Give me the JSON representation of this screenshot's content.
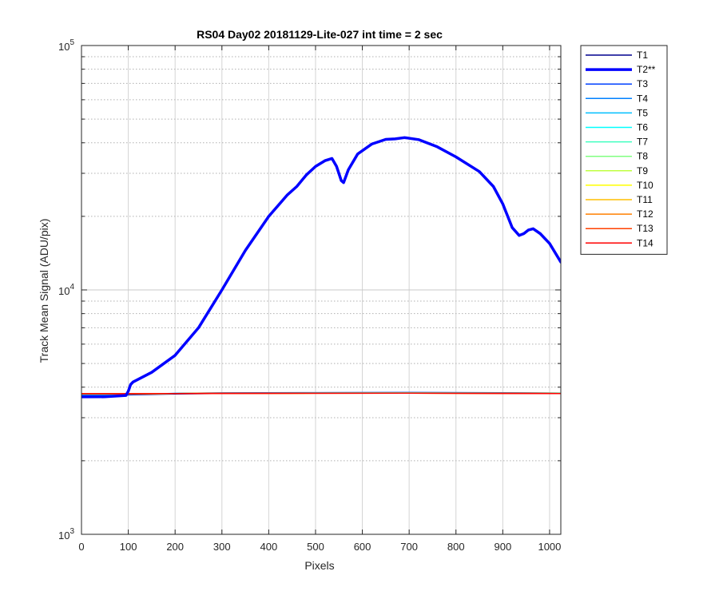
{
  "chart_data": {
    "type": "line",
    "title": "RS04 Day02 20181129-Lite-027 int time = 2 sec",
    "xlabel": "Pixels",
    "ylabel": "Track Mean Signal (ADU/pix)",
    "xlim": [
      0,
      1024
    ],
    "ylim": [
      1000,
      100000
    ],
    "yscale": "log",
    "grid": true,
    "legend_position": "outside-right",
    "x_ticks": [
      0,
      100,
      200,
      300,
      400,
      500,
      600,
      700,
      800,
      900,
      1000
    ],
    "y_ticks": [
      {
        "value": 1000,
        "base": "10",
        "exp": "3"
      },
      {
        "value": 10000,
        "base": "10",
        "exp": "4"
      },
      {
        "value": 100000,
        "base": "10",
        "exp": "5"
      }
    ],
    "highlight": "T2**",
    "series": [
      {
        "name": "T1",
        "color": "#00008f",
        "x": [
          0,
          90,
          100,
          200,
          300,
          500,
          700,
          900,
          1024
        ],
        "y": [
          3700,
          3705,
          3720,
          3750,
          3770,
          3785,
          3790,
          3780,
          3770
        ]
      },
      {
        "name": "T2**",
        "color": "#0000ff",
        "bold": true,
        "x": [
          0,
          50,
          95,
          100,
          105,
          110,
          150,
          200,
          250,
          300,
          350,
          400,
          440,
          460,
          480,
          500,
          520,
          535,
          545,
          555,
          560,
          570,
          590,
          620,
          650,
          670,
          690,
          720,
          760,
          800,
          850,
          880,
          900,
          920,
          935,
          945,
          955,
          965,
          980,
          1000,
          1024
        ],
        "y": [
          3650,
          3655,
          3700,
          3850,
          4100,
          4200,
          4600,
          5400,
          7000,
          10000,
          14500,
          20000,
          24500,
          26500,
          29500,
          32000,
          33800,
          34500,
          32000,
          28000,
          27500,
          31000,
          36000,
          39500,
          41300,
          41500,
          42000,
          41200,
          38500,
          35000,
          30500,
          26500,
          22500,
          18000,
          16700,
          17000,
          17600,
          17800,
          17000,
          15500,
          13000
        ]
      },
      {
        "name": "T3",
        "color": "#0040ff",
        "x": [
          0,
          90,
          100,
          200,
          300,
          500,
          700,
          900,
          1024
        ],
        "y": [
          3720,
          3725,
          3740,
          3770,
          3790,
          3800,
          3805,
          3795,
          3785
        ]
      },
      {
        "name": "T4",
        "color": "#0080ff",
        "x": [
          0,
          90,
          100,
          200,
          300,
          500,
          700,
          900,
          1024
        ],
        "y": [
          3730,
          3735,
          3745,
          3770,
          3785,
          3795,
          3800,
          3790,
          3780
        ]
      },
      {
        "name": "T5",
        "color": "#00bfff",
        "x": [
          0,
          90,
          100,
          200,
          300,
          500,
          700,
          900,
          1024
        ],
        "y": [
          3740,
          3742,
          3750,
          3770,
          3780,
          3790,
          3795,
          3785,
          3778
        ]
      },
      {
        "name": "T6",
        "color": "#00ffff",
        "x": [
          0,
          90,
          100,
          200,
          300,
          500,
          700,
          900,
          1024
        ],
        "y": [
          3745,
          3747,
          3752,
          3768,
          3778,
          3786,
          3790,
          3782,
          3775
        ]
      },
      {
        "name": "T7",
        "color": "#40ffbf",
        "x": [
          0,
          90,
          100,
          200,
          300,
          500,
          700,
          900,
          1024
        ],
        "y": [
          3748,
          3750,
          3755,
          3768,
          3776,
          3784,
          3788,
          3780,
          3773
        ]
      },
      {
        "name": "T8",
        "color": "#80ff80",
        "x": [
          0,
          90,
          100,
          200,
          300,
          500,
          700,
          900,
          1024
        ],
        "y": [
          3750,
          3752,
          3757,
          3768,
          3775,
          3782,
          3786,
          3778,
          3772
        ]
      },
      {
        "name": "T9",
        "color": "#bfff40",
        "x": [
          0,
          90,
          100,
          200,
          300,
          500,
          700,
          900,
          1024
        ],
        "y": [
          3752,
          3754,
          3758,
          3768,
          3774,
          3781,
          3784,
          3777,
          3771
        ]
      },
      {
        "name": "T10",
        "color": "#ffff00",
        "x": [
          0,
          90,
          100,
          200,
          300,
          500,
          700,
          900,
          1024
        ],
        "y": [
          3754,
          3756,
          3760,
          3768,
          3774,
          3780,
          3783,
          3776,
          3770
        ]
      },
      {
        "name": "T11",
        "color": "#ffbf00",
        "x": [
          0,
          90,
          100,
          200,
          300,
          500,
          700,
          900,
          1024
        ],
        "y": [
          3756,
          3758,
          3761,
          3768,
          3773,
          3779,
          3782,
          3775,
          3769
        ]
      },
      {
        "name": "T12",
        "color": "#ff8000",
        "x": [
          0,
          90,
          100,
          200,
          300,
          500,
          700,
          900,
          1024
        ],
        "y": [
          3758,
          3759,
          3762,
          3768,
          3773,
          3778,
          3781,
          3774,
          3768
        ]
      },
      {
        "name": "T13",
        "color": "#ff4000",
        "x": [
          0,
          90,
          100,
          200,
          300,
          500,
          700,
          900,
          1024
        ],
        "y": [
          3759,
          3760,
          3763,
          3768,
          3772,
          3777,
          3780,
          3773,
          3767
        ]
      },
      {
        "name": "T14",
        "color": "#ff0000",
        "x": [
          0,
          90,
          100,
          200,
          300,
          500,
          700,
          900,
          1024
        ],
        "y": [
          3760,
          3761,
          3764,
          3768,
          3772,
          3776,
          3779,
          3772,
          3766
        ]
      }
    ]
  }
}
